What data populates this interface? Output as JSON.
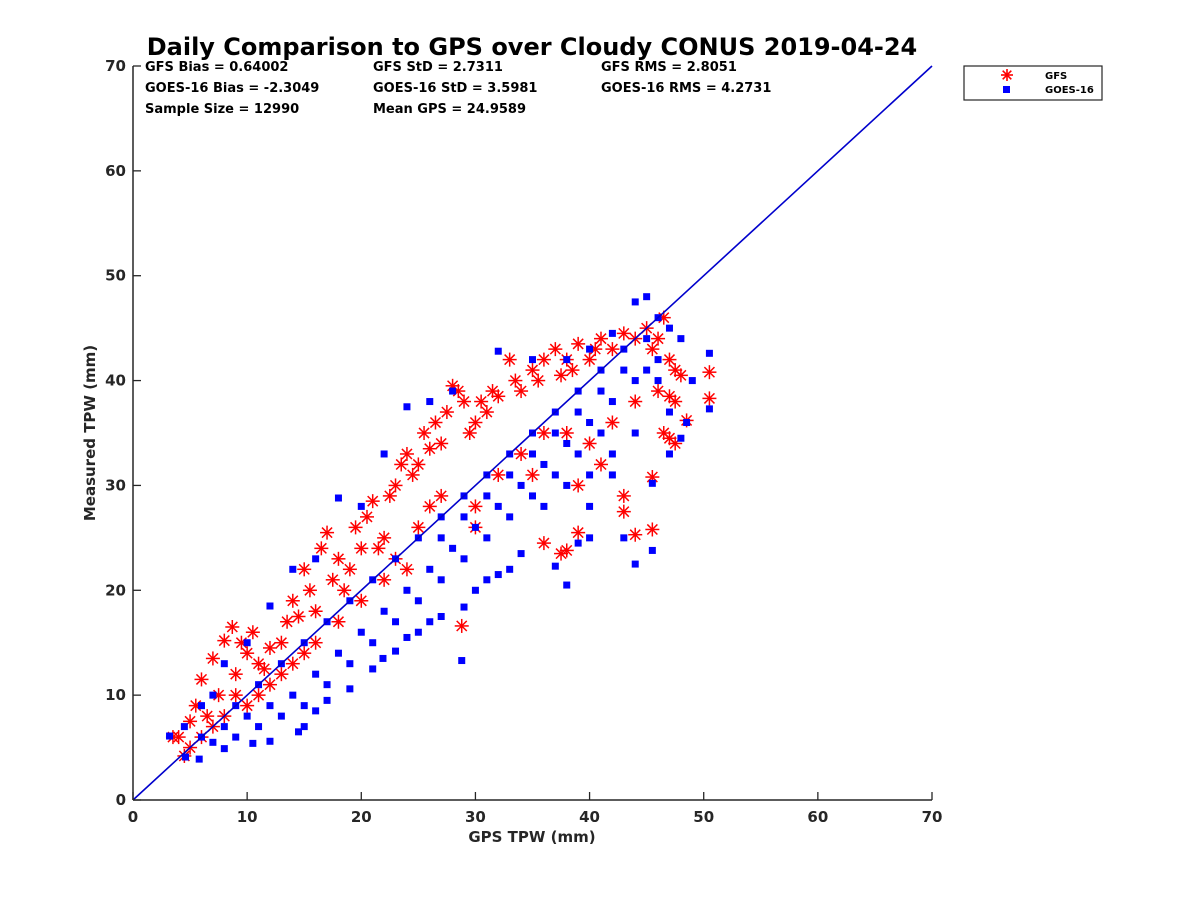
{
  "colors": {
    "gfs": "#ff0000",
    "goes16": "#0000ff",
    "axis": "#262626",
    "one_to_one": "#0000cc"
  },
  "icons": {
    "gfs_marker": "red-asterisk-icon",
    "goes16_marker": "blue-square-icon"
  },
  "stats": {
    "gfs_bias": "GFS Bias = 0.64002",
    "gfs_std": "GFS StD = 2.7311",
    "gfs_rms": "GFS RMS = 2.8051",
    "goes_bias": "GOES-16 Bias = -2.3049",
    "goes_std": "GOES-16 StD = 3.5981",
    "goes_rms": "GOES-16 RMS = 4.2731",
    "sample_size": "Sample Size = 12990",
    "mean_gps": "Mean GPS = 24.9589"
  },
  "chart_data": {
    "type": "scatter",
    "title": "Daily Comparison to GPS over Cloudy CONUS 2019-04-24",
    "xlabel": "GPS TPW (mm)",
    "ylabel": "Measured TPW (mm)",
    "xlim": [
      0,
      70
    ],
    "ylim": [
      0,
      70
    ],
    "xticks": [
      "0",
      "10",
      "20",
      "30",
      "40",
      "50",
      "60",
      "70"
    ],
    "yticks": [
      "0",
      "10",
      "20",
      "30",
      "40",
      "50",
      "60",
      "70"
    ],
    "grid": false,
    "legend_position": "outside-top-right",
    "reference_line": {
      "from": [
        0,
        0
      ],
      "to": [
        70,
        70
      ]
    },
    "series": [
      {
        "name": "GFS",
        "marker": "asterisk",
        "points": [
          [
            3.5,
            6
          ],
          [
            4.5,
            4.2
          ],
          [
            5,
            7.5
          ],
          [
            5.5,
            9
          ],
          [
            6,
            11.5
          ],
          [
            6.5,
            8
          ],
          [
            7,
            13.5
          ],
          [
            7.5,
            10
          ],
          [
            8,
            15.2
          ],
          [
            8.7,
            16.5
          ],
          [
            9,
            12
          ],
          [
            9.5,
            15
          ],
          [
            10,
            14
          ],
          [
            10.5,
            16
          ],
          [
            11,
            13
          ],
          [
            11.5,
            12.5
          ],
          [
            12,
            14.5
          ],
          [
            13,
            15
          ],
          [
            13.5,
            17
          ],
          [
            14,
            19
          ],
          [
            14.5,
            17.5
          ],
          [
            15,
            22
          ],
          [
            15.5,
            20
          ],
          [
            16,
            18
          ],
          [
            16.5,
            24
          ],
          [
            17,
            25.5
          ],
          [
            17.5,
            21
          ],
          [
            18,
            23
          ],
          [
            18.5,
            20
          ],
          [
            19,
            22
          ],
          [
            19.5,
            26
          ],
          [
            20,
            24
          ],
          [
            20.5,
            27
          ],
          [
            21,
            28.5
          ],
          [
            21.5,
            24
          ],
          [
            22,
            25
          ],
          [
            22.5,
            29
          ],
          [
            23,
            30
          ],
          [
            23.5,
            32
          ],
          [
            24,
            33
          ],
          [
            24.5,
            31
          ],
          [
            25,
            32
          ],
          [
            25.5,
            35
          ],
          [
            26,
            33.5
          ],
          [
            26.5,
            36
          ],
          [
            27,
            34
          ],
          [
            27.5,
            37
          ],
          [
            28,
            39.5
          ],
          [
            28.5,
            39
          ],
          [
            29,
            38
          ],
          [
            29.5,
            35
          ],
          [
            30,
            36
          ],
          [
            30.5,
            38
          ],
          [
            31,
            37
          ],
          [
            31.5,
            39
          ],
          [
            32,
            38.5
          ],
          [
            33,
            42
          ],
          [
            33.5,
            40
          ],
          [
            34,
            39
          ],
          [
            35,
            41
          ],
          [
            35.5,
            40
          ],
          [
            36,
            42
          ],
          [
            37,
            43
          ],
          [
            37.5,
            40.5
          ],
          [
            38,
            42
          ],
          [
            38.5,
            41
          ],
          [
            39,
            43.5
          ],
          [
            40,
            42
          ],
          [
            40.5,
            43
          ],
          [
            41,
            44
          ],
          [
            42,
            43
          ],
          [
            43,
            44.5
          ],
          [
            44,
            44
          ],
          [
            45,
            45
          ],
          [
            45.5,
            43
          ],
          [
            46,
            44
          ],
          [
            46.5,
            46
          ],
          [
            47,
            42
          ],
          [
            47.5,
            41
          ],
          [
            48,
            40.5
          ],
          [
            46,
            39
          ],
          [
            47,
            38.5
          ],
          [
            47.5,
            38
          ],
          [
            46.5,
            35
          ],
          [
            47,
            34.5
          ],
          [
            47.5,
            34
          ],
          [
            48.5,
            36.2
          ],
          [
            50.5,
            40.8
          ],
          [
            50.5,
            38.3
          ],
          [
            45.5,
            30.8
          ],
          [
            43,
            29
          ],
          [
            43,
            27.5
          ],
          [
            44,
            25.3
          ],
          [
            45.5,
            25.8
          ],
          [
            38,
            23.8
          ],
          [
            37.5,
            23.5
          ],
          [
            39,
            25.5
          ],
          [
            36,
            24.5
          ],
          [
            28.8,
            16.6
          ],
          [
            30,
            28
          ],
          [
            26,
            28
          ],
          [
            27,
            29
          ],
          [
            25,
            26
          ],
          [
            24,
            22
          ],
          [
            23,
            23
          ],
          [
            32,
            31
          ],
          [
            34,
            33
          ],
          [
            36,
            35
          ],
          [
            40,
            34
          ],
          [
            41,
            32
          ],
          [
            42,
            36
          ],
          [
            44,
            38
          ],
          [
            39,
            30
          ],
          [
            38,
            35
          ],
          [
            35,
            31
          ],
          [
            30,
            26
          ],
          [
            12,
            11
          ],
          [
            11,
            10
          ],
          [
            10,
            9
          ],
          [
            9,
            10
          ],
          [
            8,
            8
          ],
          [
            7,
            7
          ],
          [
            6,
            6
          ],
          [
            4,
            6
          ],
          [
            5,
            5
          ],
          [
            13,
            12
          ],
          [
            14,
            13
          ],
          [
            15,
            14
          ],
          [
            16,
            15
          ],
          [
            18,
            17
          ],
          [
            20,
            19
          ],
          [
            22,
            21
          ]
        ]
      },
      {
        "name": "GOES-16",
        "marker": "square",
        "points": [
          [
            3.2,
            6.1
          ],
          [
            4.6,
            4.1
          ],
          [
            5.8,
            3.9
          ],
          [
            8,
            4.9
          ],
          [
            10.5,
            5.4
          ],
          [
            12,
            5.6
          ],
          [
            14.5,
            6.5
          ],
          [
            15,
            7
          ],
          [
            16,
            8.5
          ],
          [
            17,
            9.5
          ],
          [
            19,
            10.6
          ],
          [
            21,
            12.5
          ],
          [
            21.9,
            13.5
          ],
          [
            23,
            14.2
          ],
          [
            24,
            15.5
          ],
          [
            25,
            16
          ],
          [
            26,
            17
          ],
          [
            27,
            17.5
          ],
          [
            28.8,
            13.3
          ],
          [
            29,
            18.4
          ],
          [
            30,
            20
          ],
          [
            31,
            21
          ],
          [
            32,
            21.5
          ],
          [
            33,
            22
          ],
          [
            34,
            23.5
          ],
          [
            37,
            22.3
          ],
          [
            38,
            20.5
          ],
          [
            39,
            24.5
          ],
          [
            40,
            25
          ],
          [
            43,
            25
          ],
          [
            44,
            22.5
          ],
          [
            45.5,
            23.8
          ],
          [
            45.5,
            30.2
          ],
          [
            47,
            33
          ],
          [
            48,
            34.5
          ],
          [
            48.5,
            36
          ],
          [
            50.5,
            42.6
          ],
          [
            50.5,
            37.3
          ],
          [
            49,
            40
          ],
          [
            48,
            44
          ],
          [
            47,
            45
          ],
          [
            46,
            46
          ],
          [
            45,
            48
          ],
          [
            44,
            47.5
          ],
          [
            42,
            44.5
          ],
          [
            40,
            43
          ],
          [
            38,
            42
          ],
          [
            35,
            42
          ],
          [
            32,
            42.8
          ],
          [
            28,
            39
          ],
          [
            26,
            38
          ],
          [
            24,
            37.5
          ],
          [
            22,
            33
          ],
          [
            20,
            28
          ],
          [
            18,
            28.8
          ],
          [
            16,
            23
          ],
          [
            14,
            22
          ],
          [
            12,
            18.5
          ],
          [
            10,
            15
          ],
          [
            8,
            13
          ],
          [
            6,
            9
          ],
          [
            4.5,
            7
          ],
          [
            7,
            10
          ],
          [
            9,
            9
          ],
          [
            11,
            11
          ],
          [
            13,
            13
          ],
          [
            15,
            15
          ],
          [
            17,
            17
          ],
          [
            19,
            19
          ],
          [
            21,
            21
          ],
          [
            23,
            23
          ],
          [
            25,
            25
          ],
          [
            27,
            27
          ],
          [
            29,
            29
          ],
          [
            31,
            31
          ],
          [
            33,
            33
          ],
          [
            35,
            35
          ],
          [
            37,
            37
          ],
          [
            39,
            39
          ],
          [
            41,
            41
          ],
          [
            43,
            43
          ],
          [
            45,
            44
          ],
          [
            46,
            42
          ],
          [
            44,
            40
          ],
          [
            42,
            38
          ],
          [
            40,
            36
          ],
          [
            38,
            34
          ],
          [
            36,
            32
          ],
          [
            34,
            30
          ],
          [
            32,
            28
          ],
          [
            30,
            26
          ],
          [
            28,
            24
          ],
          [
            26,
            22
          ],
          [
            24,
            20
          ],
          [
            22,
            18
          ],
          [
            20,
            16
          ],
          [
            18,
            14
          ],
          [
            16,
            12
          ],
          [
            14,
            10
          ],
          [
            12,
            9
          ],
          [
            10,
            8
          ],
          [
            8,
            7
          ],
          [
            6,
            6
          ],
          [
            36,
            28
          ],
          [
            38,
            30
          ],
          [
            40,
            31
          ],
          [
            42,
            33
          ],
          [
            41,
            35
          ],
          [
            39,
            33
          ],
          [
            37,
            31
          ],
          [
            35,
            29
          ],
          [
            33,
            27
          ],
          [
            31,
            25
          ],
          [
            29,
            23
          ],
          [
            27,
            21
          ],
          [
            25,
            19
          ],
          [
            23,
            17
          ],
          [
            21,
            15
          ],
          [
            19,
            13
          ],
          [
            17,
            11
          ],
          [
            15,
            9
          ],
          [
            13,
            8
          ],
          [
            11,
            7
          ],
          [
            9,
            6
          ],
          [
            7,
            5.5
          ],
          [
            27,
            25
          ],
          [
            29,
            27
          ],
          [
            31,
            29
          ],
          [
            33,
            31
          ],
          [
            35,
            33
          ],
          [
            37,
            35
          ],
          [
            39,
            37
          ],
          [
            41,
            39
          ],
          [
            43,
            41
          ],
          [
            45,
            41
          ],
          [
            46,
            40
          ],
          [
            47,
            37
          ],
          [
            44,
            35
          ],
          [
            42,
            31
          ],
          [
            40,
            28
          ]
        ]
      }
    ]
  }
}
